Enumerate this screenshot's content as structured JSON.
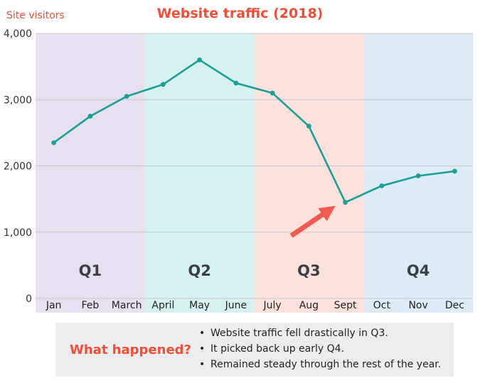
{
  "chart_data": {
    "type": "line",
    "title": "Website traffic (2018)",
    "ylabel": "Site visitors",
    "xlabel": "",
    "ylim": [
      0,
      4000
    ],
    "yticks": [
      0,
      1000,
      2000,
      3000,
      4000
    ],
    "ytick_labels": [
      "0",
      "1,000",
      "2,000",
      "3,000",
      "4,000"
    ],
    "grid": true,
    "categories": [
      "Jan",
      "Feb",
      "March",
      "April",
      "May",
      "June",
      "July",
      "Aug",
      "Sept",
      "Oct",
      "Nov",
      "Dec"
    ],
    "series": [
      {
        "values": [
          2350,
          2750,
          3050,
          3230,
          3600,
          3250,
          3100,
          2600,
          1450,
          1700,
          1850,
          1920
        ]
      }
    ],
    "line_color": "#1a9e95",
    "quarters": [
      {
        "label": "Q1",
        "start": 0,
        "end": 2,
        "color": "#e7e0ee"
      },
      {
        "label": "Q2",
        "start": 3,
        "end": 5,
        "color": "#d6f2f0"
      },
      {
        "label": "Q3",
        "start": 6,
        "end": 8,
        "color": "#fde1dc"
      },
      {
        "label": "Q4",
        "start": 9,
        "end": 11,
        "color": "#dcebf5"
      }
    ],
    "annotation": {
      "type": "arrow",
      "points_to": "Sept",
      "color": "#f15a50"
    }
  },
  "note": {
    "heading": "What happened?",
    "items": [
      "Website traffic fell drastically in Q3.",
      "It picked back up early Q4.",
      "Remained steady through the rest of the year."
    ]
  }
}
